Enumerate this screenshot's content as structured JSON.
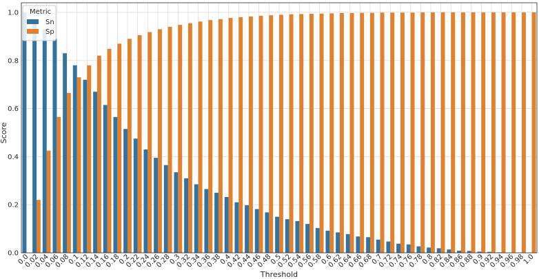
{
  "chart_data": {
    "type": "bar",
    "xlabel": "Threshold",
    "ylabel": "Score",
    "ylim": [
      0,
      1.04
    ],
    "yticks": [
      "0.0",
      "0.2",
      "0.4",
      "0.6",
      "0.8",
      "1.0"
    ],
    "grid": true,
    "legend": {
      "title": "Metric",
      "placement": "top-left"
    },
    "categories": [
      "0.0",
      "0.02",
      "0.04",
      "0.06",
      "0.08",
      "0.1",
      "0.12",
      "0.14",
      "0.16",
      "0.18",
      "0.2",
      "0.22",
      "0.24",
      "0.26",
      "0.28",
      "0.3",
      "0.32",
      "0.34",
      "0.36",
      "0.38",
      "0.4",
      "0.42",
      "0.44",
      "0.46",
      "0.48",
      "0.5",
      "0.52",
      "0.54",
      "0.56",
      "0.58",
      "0.6",
      "0.62",
      "0.64",
      "0.66",
      "0.68",
      "0.7",
      "0.72",
      "0.74",
      "0.76",
      "0.78",
      "0.8",
      "0.82",
      "0.84",
      "0.86",
      "0.88",
      "0.9",
      "0.92",
      "0.94",
      "0.96",
      "0.98",
      "1.0"
    ],
    "series": [
      {
        "name": "Sn",
        "color": "#3274a1",
        "values": [
          1.0,
          0.96,
          0.93,
          0.89,
          0.83,
          0.78,
          0.72,
          0.67,
          0.615,
          0.565,
          0.515,
          0.475,
          0.43,
          0.395,
          0.365,
          0.335,
          0.31,
          0.285,
          0.265,
          0.25,
          0.232,
          0.21,
          0.198,
          0.182,
          0.168,
          0.15,
          0.14,
          0.132,
          0.12,
          0.103,
          0.092,
          0.085,
          0.078,
          0.068,
          0.065,
          0.055,
          0.047,
          0.038,
          0.035,
          0.027,
          0.022,
          0.019,
          0.014,
          0.009,
          0.008,
          0.005,
          0.004,
          0.002,
          0.001,
          0.0005,
          0.0
        ]
      },
      {
        "name": "Sp",
        "color": "#e1812c",
        "values": [
          0.0,
          0.22,
          0.425,
          0.565,
          0.665,
          0.73,
          0.78,
          0.82,
          0.848,
          0.87,
          0.89,
          0.905,
          0.918,
          0.93,
          0.94,
          0.948,
          0.955,
          0.962,
          0.968,
          0.972,
          0.977,
          0.98,
          0.983,
          0.986,
          0.988,
          0.99,
          0.992,
          0.993,
          0.994,
          0.995,
          0.996,
          0.997,
          0.997,
          0.998,
          0.998,
          0.999,
          0.999,
          0.999,
          0.999,
          1.0,
          1.0,
          1.0,
          1.0,
          1.0,
          1.0,
          1.0,
          1.0,
          1.0,
          1.0,
          1.0,
          1.0
        ]
      }
    ]
  }
}
